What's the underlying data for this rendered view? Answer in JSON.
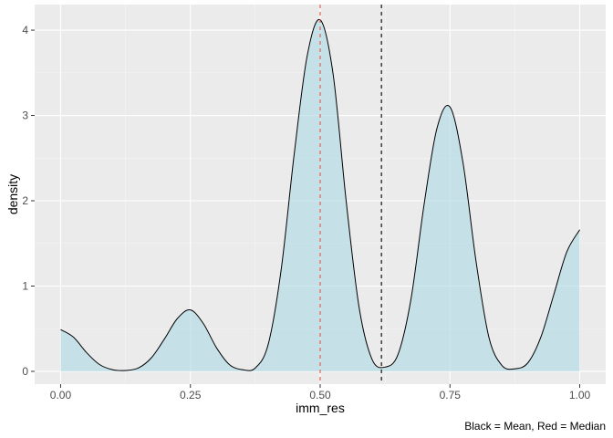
{
  "chart_data": {
    "type": "area",
    "xlabel": "imm_res",
    "ylabel": "density",
    "caption": "Black = Mean, Red = Median",
    "xlim": [
      -0.05,
      1.05
    ],
    "ylim": [
      -0.15,
      4.3
    ],
    "x_ticks": [
      0,
      0.25,
      0.5,
      0.75,
      1
    ],
    "x_tick_labels": [
      "0.00",
      "0.25",
      "0.50",
      "0.75",
      "1.00"
    ],
    "y_ticks": [
      0,
      1,
      2,
      3,
      4
    ],
    "y_tick_labels": [
      "0",
      "1",
      "2",
      "3",
      "4"
    ],
    "grid": true,
    "fill_color": "#add8e6",
    "background_color": "#ebebeb",
    "mean": 0.618,
    "median": 0.5,
    "mean_line_color": "#000000",
    "median_line_color": "#e34a33",
    "x": [
      0.0,
      0.025,
      0.05,
      0.075,
      0.1,
      0.125,
      0.15,
      0.175,
      0.2,
      0.225,
      0.25,
      0.275,
      0.3,
      0.325,
      0.35,
      0.375,
      0.4,
      0.425,
      0.45,
      0.475,
      0.5,
      0.525,
      0.55,
      0.575,
      0.6,
      0.625,
      0.65,
      0.675,
      0.7,
      0.725,
      0.75,
      0.775,
      0.8,
      0.825,
      0.85,
      0.875,
      0.9,
      0.925,
      0.95,
      0.975,
      1.0
    ],
    "y": [
      0.49,
      0.4,
      0.22,
      0.08,
      0.02,
      0.01,
      0.04,
      0.16,
      0.38,
      0.62,
      0.72,
      0.56,
      0.28,
      0.08,
      0.02,
      0.04,
      0.32,
      1.2,
      2.55,
      3.7,
      4.12,
      3.48,
      2.0,
      0.75,
      0.14,
      0.05,
      0.2,
      0.85,
      1.95,
      2.85,
      3.1,
      2.45,
      1.3,
      0.4,
      0.07,
      0.03,
      0.1,
      0.4,
      0.9,
      1.4,
      1.66
    ]
  }
}
